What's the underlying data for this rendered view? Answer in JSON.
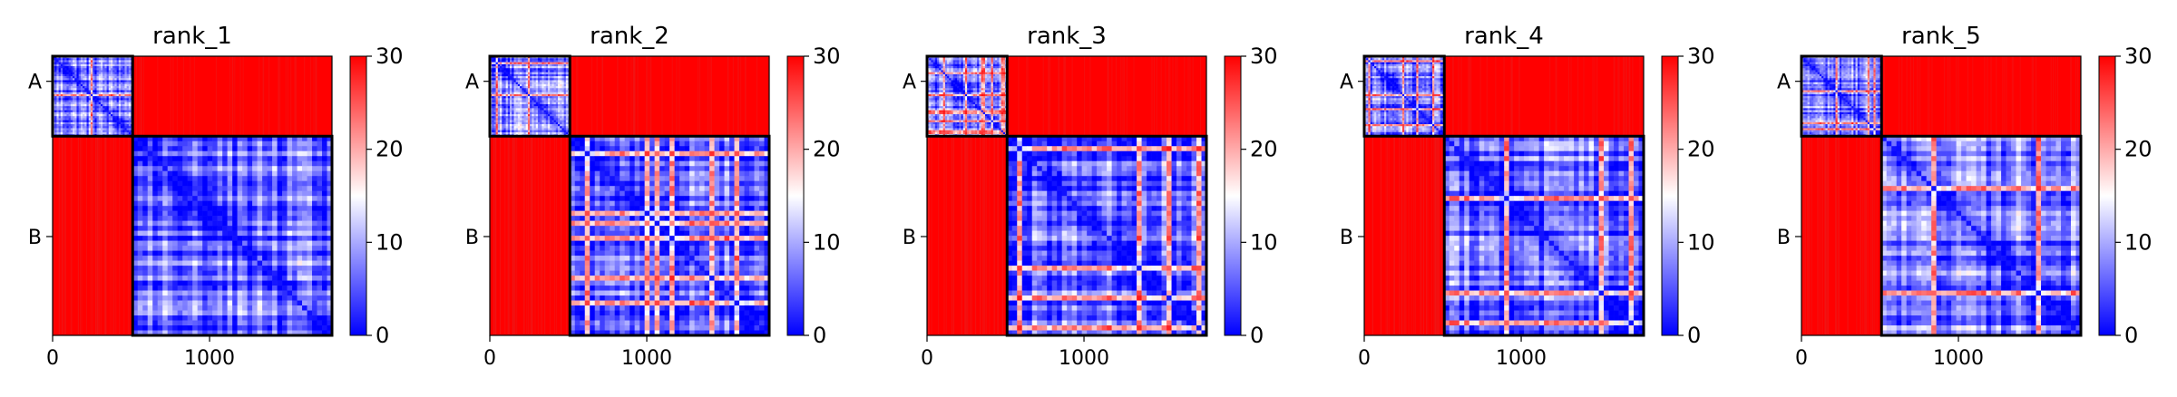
{
  "chart_data": [
    {
      "type": "heatmap",
      "title": "rank_1",
      "xlabel": "",
      "ylabel": "",
      "x_range": [
        0,
        1780
      ],
      "y_range": [
        0,
        1780
      ],
      "x_ticks": [
        {
          "value": 0,
          "label": "0"
        },
        {
          "value": 1000,
          "label": "1000"
        }
      ],
      "y_ticks": [
        {
          "value": 160,
          "label": "A"
        },
        {
          "value": 1150,
          "label": "B"
        }
      ],
      "blocks": [
        {
          "row": "A",
          "col": "A",
          "range": [
            0,
            510
          ],
          "pattern": "mixed blue/white/red",
          "approx_value": 8
        },
        {
          "row": "A",
          "col": "B",
          "range_x": [
            510,
            1780
          ],
          "range_y": [
            0,
            510
          ],
          "pattern": "red",
          "approx_value": 30
        },
        {
          "row": "B",
          "col": "A",
          "range_x": [
            0,
            510
          ],
          "range_y": [
            510,
            1780
          ],
          "pattern": "red",
          "approx_value": 30
        },
        {
          "row": "B",
          "col": "B",
          "range": [
            510,
            1780
          ],
          "pattern": "blue with white/red stripes",
          "approx_value": 7
        }
      ],
      "colorbar": {
        "ticks": [
          0,
          10,
          20,
          30
        ],
        "range": [
          0,
          30
        ],
        "cmap": [
          "#0000ff",
          "#ffffff",
          "#ff0000"
        ]
      }
    },
    {
      "type": "heatmap",
      "title": "rank_2",
      "xlabel": "",
      "ylabel": "",
      "x_range": [
        0,
        1780
      ],
      "y_range": [
        0,
        1780
      ],
      "x_ticks": [
        {
          "value": 0,
          "label": "0"
        },
        {
          "value": 1000,
          "label": "1000"
        }
      ],
      "y_ticks": [
        {
          "value": 160,
          "label": "A"
        },
        {
          "value": 1150,
          "label": "B"
        }
      ],
      "blocks": [
        {
          "row": "A",
          "col": "A",
          "range": [
            0,
            510
          ],
          "pattern": "mixed blue/white/red",
          "approx_value": 8
        },
        {
          "row": "A",
          "col": "B",
          "range_x": [
            510,
            1780
          ],
          "range_y": [
            0,
            510
          ],
          "pattern": "red",
          "approx_value": 30
        },
        {
          "row": "B",
          "col": "A",
          "range_x": [
            0,
            510
          ],
          "range_y": [
            510,
            1780
          ],
          "pattern": "red",
          "approx_value": 30
        },
        {
          "row": "B",
          "col": "B",
          "range": [
            510,
            1780
          ],
          "pattern": "blue with white/red stripes",
          "approx_value": 7
        }
      ],
      "colorbar": {
        "ticks": [
          0,
          10,
          20,
          30
        ],
        "range": [
          0,
          30
        ],
        "cmap": [
          "#0000ff",
          "#ffffff",
          "#ff0000"
        ]
      }
    },
    {
      "type": "heatmap",
      "title": "rank_3",
      "xlabel": "",
      "ylabel": "",
      "x_range": [
        0,
        1780
      ],
      "y_range": [
        0,
        1780
      ],
      "x_ticks": [
        {
          "value": 0,
          "label": "0"
        },
        {
          "value": 1000,
          "label": "1000"
        }
      ],
      "y_ticks": [
        {
          "value": 160,
          "label": "A"
        },
        {
          "value": 1150,
          "label": "B"
        }
      ],
      "blocks": [
        {
          "row": "A",
          "col": "A",
          "range": [
            0,
            510
          ],
          "pattern": "mixed blue/white/red",
          "approx_value": 8
        },
        {
          "row": "A",
          "col": "B",
          "range_x": [
            510,
            1780
          ],
          "range_y": [
            0,
            510
          ],
          "pattern": "red",
          "approx_value": 30
        },
        {
          "row": "B",
          "col": "A",
          "range_x": [
            0,
            510
          ],
          "range_y": [
            510,
            1780
          ],
          "pattern": "red",
          "approx_value": 30
        },
        {
          "row": "B",
          "col": "B",
          "range": [
            510,
            1780
          ],
          "pattern": "blue with white/red stripes",
          "approx_value": 7
        }
      ],
      "colorbar": {
        "ticks": [
          0,
          10,
          20,
          30
        ],
        "range": [
          0,
          30
        ],
        "cmap": [
          "#0000ff",
          "#ffffff",
          "#ff0000"
        ]
      }
    },
    {
      "type": "heatmap",
      "title": "rank_4",
      "xlabel": "",
      "ylabel": "",
      "x_range": [
        0,
        1780
      ],
      "y_range": [
        0,
        1780
      ],
      "x_ticks": [
        {
          "value": 0,
          "label": "0"
        },
        {
          "value": 1000,
          "label": "1000"
        }
      ],
      "y_ticks": [
        {
          "value": 160,
          "label": "A"
        },
        {
          "value": 1150,
          "label": "B"
        }
      ],
      "blocks": [
        {
          "row": "A",
          "col": "A",
          "range": [
            0,
            510
          ],
          "pattern": "mixed blue/white/red",
          "approx_value": 8
        },
        {
          "row": "A",
          "col": "B",
          "range_x": [
            510,
            1780
          ],
          "range_y": [
            0,
            510
          ],
          "pattern": "red",
          "approx_value": 30
        },
        {
          "row": "B",
          "col": "A",
          "range_x": [
            0,
            510
          ],
          "range_y": [
            510,
            1780
          ],
          "pattern": "red",
          "approx_value": 30
        },
        {
          "row": "B",
          "col": "B",
          "range": [
            510,
            1780
          ],
          "pattern": "blue with white/red stripes",
          "approx_value": 7
        }
      ],
      "colorbar": {
        "ticks": [
          0,
          10,
          20,
          30
        ],
        "range": [
          0,
          30
        ],
        "cmap": [
          "#0000ff",
          "#ffffff",
          "#ff0000"
        ]
      }
    },
    {
      "type": "heatmap",
      "title": "rank_5",
      "xlabel": "",
      "ylabel": "",
      "x_range": [
        0,
        1780
      ],
      "y_range": [
        0,
        1780
      ],
      "x_ticks": [
        {
          "value": 0,
          "label": "0"
        },
        {
          "value": 1000,
          "label": "1000"
        }
      ],
      "y_ticks": [
        {
          "value": 160,
          "label": "A"
        },
        {
          "value": 1150,
          "label": "B"
        }
      ],
      "blocks": [
        {
          "row": "A",
          "col": "A",
          "range": [
            0,
            510
          ],
          "pattern": "mixed blue/white/red",
          "approx_value": 8
        },
        {
          "row": "A",
          "col": "B",
          "range_x": [
            510,
            1780
          ],
          "range_y": [
            0,
            510
          ],
          "pattern": "red",
          "approx_value": 30
        },
        {
          "row": "B",
          "col": "A",
          "range_x": [
            0,
            510
          ],
          "range_y": [
            510,
            1780
          ],
          "pattern": "red",
          "approx_value": 30
        },
        {
          "row": "B",
          "col": "B",
          "range": [
            510,
            1780
          ],
          "pattern": "blue with white/red stripes",
          "approx_value": 7
        }
      ],
      "colorbar": {
        "ticks": [
          0,
          10,
          20,
          30
        ],
        "range": [
          0,
          30
        ],
        "cmap": [
          "#0000ff",
          "#ffffff",
          "#ff0000"
        ]
      }
    }
  ]
}
